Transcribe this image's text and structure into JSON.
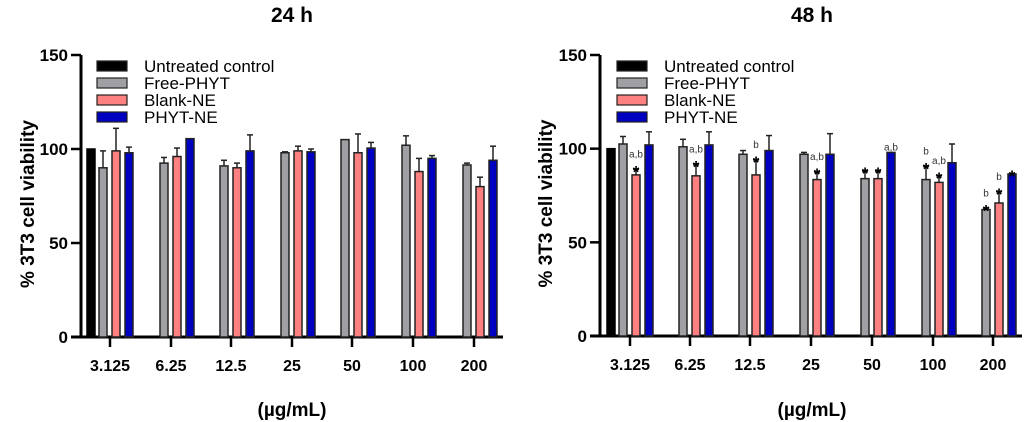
{
  "chart_data": [
    {
      "type": "bar",
      "title": "24 h",
      "xlabel": "(µg/mL)",
      "ylabel": "% 3T3 cell viability",
      "ylim": [
        0,
        150
      ],
      "yticks": [
        "0",
        "50",
        "100",
        "150"
      ],
      "categories": [
        "3.125",
        "6.25",
        "12.5",
        "25",
        "50",
        "100",
        "200"
      ],
      "legend_position": "top-left",
      "grid": false,
      "series": [
        {
          "name": "Untreated control",
          "color": "#000000",
          "values": [
            100,
            null,
            null,
            null,
            null,
            null,
            null
          ],
          "errors": [
            0,
            null,
            null,
            null,
            null,
            null,
            null
          ],
          "annotations": [
            "",
            "",
            "",
            "",
            "",
            "",
            ""
          ]
        },
        {
          "name": "Free-PHYT",
          "color": "#a0a0a4",
          "values": [
            90,
            92.5,
            91,
            98,
            105,
            102,
            91.5
          ],
          "errors": [
            9,
            3,
            3,
            0.5,
            0,
            5,
            1
          ],
          "annotations": [
            "",
            "",
            "",
            "",
            "",
            "",
            ""
          ]
        },
        {
          "name": "Blank-NE",
          "color": "#ff8080",
          "values": [
            99,
            96,
            90,
            99,
            98,
            88,
            80
          ],
          "errors": [
            12,
            4.5,
            2.5,
            2.5,
            10,
            7,
            5
          ],
          "annotations": [
            "",
            "",
            "",
            "",
            "",
            "",
            ""
          ]
        },
        {
          "name": "PHYT-NE",
          "color": "#0000c0",
          "values": [
            98,
            105.5,
            99,
            98.5,
            100.5,
            95,
            94
          ],
          "errors": [
            3,
            0,
            8.5,
            1.5,
            3,
            1.5,
            7.5
          ],
          "annotations": [
            "",
            "",
            "",
            "",
            "",
            "",
            ""
          ]
        }
      ]
    },
    {
      "type": "bar",
      "title": "48 h",
      "xlabel": "(µg/mL)",
      "ylabel": "% 3T3 cell viability",
      "ylim": [
        0,
        150
      ],
      "yticks": [
        "0",
        "50",
        "100",
        "150"
      ],
      "categories": [
        "3.125",
        "6.25",
        "12.5",
        "25",
        "50",
        "100",
        "200"
      ],
      "legend_position": "top-left",
      "grid": false,
      "series": [
        {
          "name": "Untreated control",
          "color": "#000000",
          "values": [
            100,
            null,
            null,
            null,
            null,
            null,
            null
          ],
          "errors": [
            0,
            null,
            null,
            null,
            null,
            null,
            null
          ],
          "annotations": [
            "",
            "",
            "",
            "",
            "",
            "",
            ""
          ]
        },
        {
          "name": "Free-PHYT",
          "color": "#a0a0a4",
          "values": [
            102.5,
            101,
            97,
            97,
            84,
            83.5,
            67.5
          ],
          "errors": [
            4,
            4,
            2,
            1,
            4,
            7,
            0.5
          ],
          "annotations": [
            "",
            "",
            "",
            "",
            "*",
            "b *",
            "b *"
          ]
        },
        {
          "name": "Blank-NE",
          "color": "#ff8080",
          "values": [
            86,
            85.5,
            86,
            83.5,
            84,
            82,
            71
          ],
          "errors": [
            3,
            6,
            8,
            4,
            4,
            3.5,
            6
          ],
          "annotations": [
            "a,b *",
            "a,b *",
            "b *",
            "a,b *",
            "*",
            "a,b *",
            "b *"
          ]
        },
        {
          "name": "PHYT-NE",
          "color": "#0000c0",
          "values": [
            102,
            102,
            99,
            97,
            98,
            92.5,
            86.5
          ],
          "errors": [
            7,
            7,
            8,
            11,
            0,
            10,
            0
          ],
          "annotations": [
            "",
            "",
            "",
            "",
            "a,b",
            "",
            "*"
          ]
        }
      ]
    }
  ]
}
